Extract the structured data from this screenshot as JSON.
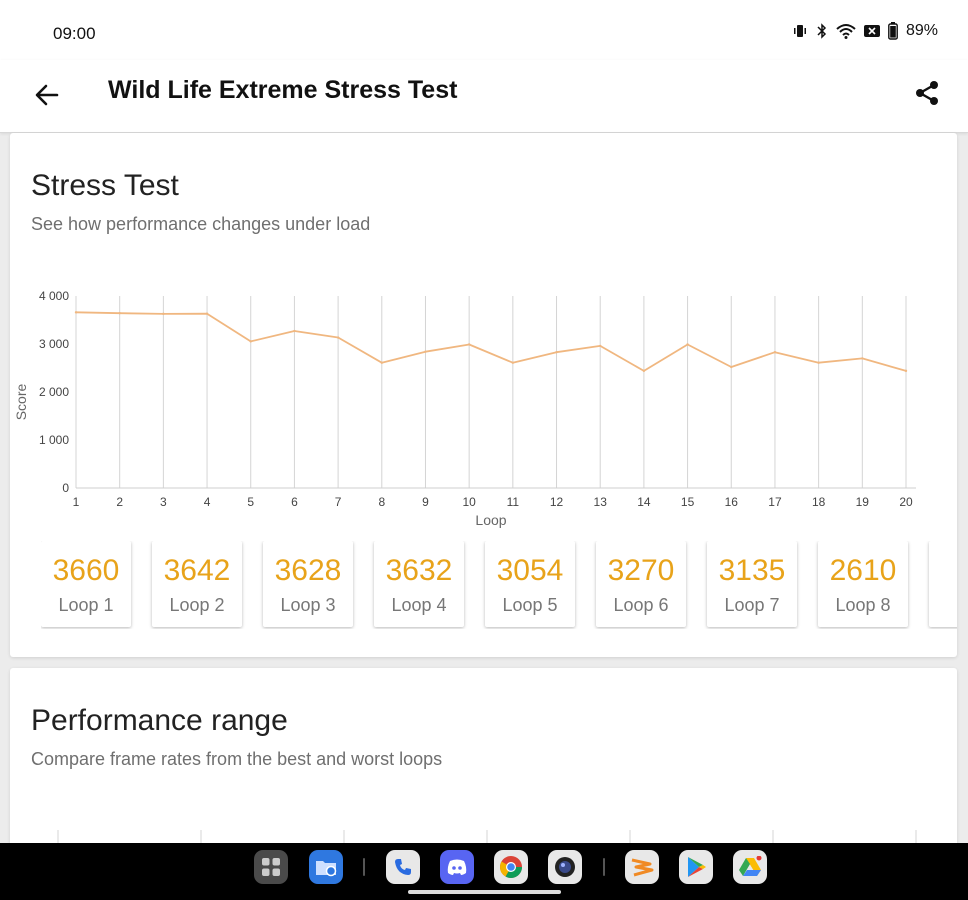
{
  "status_bar": {
    "time": "09:00",
    "battery_percent": "89%",
    "icons": [
      "vibrate-icon",
      "bluetooth-icon",
      "wifi-icon",
      "sim-off-icon",
      "battery-icon"
    ]
  },
  "app_bar": {
    "title": "Wild Life Extreme Stress Test",
    "back_icon": "arrow-left-icon",
    "share_icon": "share-icon"
  },
  "stress_card": {
    "title": "Stress Test",
    "subtitle": "See how performance changes under load",
    "loop_cards": [
      {
        "score": "3660",
        "label": "Loop 1"
      },
      {
        "score": "3642",
        "label": "Loop 2"
      },
      {
        "score": "3628",
        "label": "Loop 3"
      },
      {
        "score": "3632",
        "label": "Loop 4"
      },
      {
        "score": "3054",
        "label": "Loop 5"
      },
      {
        "score": "3270",
        "label": "Loop 6"
      },
      {
        "score": "3135",
        "label": "Loop 7"
      },
      {
        "score": "2610",
        "label": "Loop 8"
      }
    ]
  },
  "chart_data": {
    "type": "line",
    "xlabel": "Loop",
    "ylabel": "Score",
    "x": [
      1,
      2,
      3,
      4,
      5,
      6,
      7,
      8,
      9,
      10,
      11,
      12,
      13,
      14,
      15,
      16,
      17,
      18,
      19,
      20
    ],
    "series": [
      {
        "values": [
          3660,
          3642,
          3628,
          3632,
          3054,
          3270,
          3135,
          2610,
          2840,
          2990,
          2610,
          2830,
          2960,
          2440,
          2990,
          2520,
          2830,
          2610,
          2700,
          2440
        ]
      }
    ],
    "ylim": [
      0,
      4000
    ],
    "yticks": [
      "0",
      "1 000",
      "2 000",
      "3 000",
      "4 000"
    ],
    "grid": "vertical",
    "line_color": "#f0b780"
  },
  "range_card": {
    "title": "Performance range",
    "subtitle": "Compare frame rates from the best and worst loops"
  },
  "dock": {
    "apps": [
      "apps-grid-icon",
      "file-manager-icon",
      "phone-icon",
      "discord-icon",
      "chrome-icon",
      "camera-icon",
      "3dmark-icon",
      "play-store-icon",
      "google-drive-icon"
    ]
  }
}
